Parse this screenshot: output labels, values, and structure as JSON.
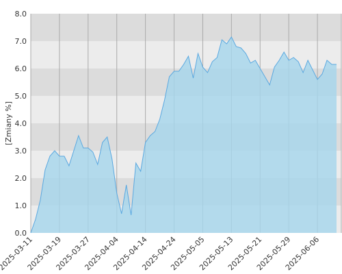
{
  "chart_data": {
    "type": "area",
    "y_label": "[Zmiany %]",
    "x": [
      0,
      1,
      2,
      3,
      4,
      5,
      6,
      7,
      8,
      9,
      10,
      11,
      12,
      13,
      14,
      15,
      16,
      17,
      18,
      19,
      20,
      21,
      22,
      23,
      24,
      25,
      26,
      27,
      28,
      29,
      30,
      31,
      32,
      33,
      34,
      35,
      36,
      37,
      38,
      39,
      40,
      41,
      42,
      43,
      44,
      45,
      46,
      47,
      48,
      49,
      50,
      51,
      52,
      53,
      54,
      55,
      56,
      57,
      58,
      59,
      60,
      61,
      62,
      63,
      64
    ],
    "series": [
      {
        "color": "#5aa8e0",
        "values": [
          0.0,
          0.5,
          1.2,
          2.3,
          2.8,
          3.0,
          2.8,
          2.8,
          2.45,
          3.0,
          3.55,
          3.1,
          3.1,
          2.95,
          2.5,
          3.3,
          3.5,
          2.7,
          1.45,
          0.7,
          1.75,
          0.65,
          2.55,
          2.25,
          3.3,
          3.55,
          3.7,
          4.15,
          4.85,
          5.7,
          5.9,
          5.9,
          6.15,
          6.45,
          5.65,
          6.55,
          6.05,
          5.85,
          6.25,
          6.4,
          7.05,
          6.9,
          7.15,
          6.8,
          6.75,
          6.55,
          6.2,
          6.3,
          6.0,
          5.7,
          5.4,
          6.05,
          6.3,
          6.6,
          6.3,
          6.4,
          6.25,
          5.85,
          6.3,
          5.95,
          5.6,
          5.8,
          6.3,
          6.15,
          6.15
        ]
      }
    ],
    "xlim": [
      0,
      65
    ],
    "xticks": [
      {
        "value": 0,
        "label": "2025-03-11"
      },
      {
        "value": 6,
        "label": "2025-03-19"
      },
      {
        "value": 12,
        "label": "2025-03-27"
      },
      {
        "value": 18,
        "label": "2025-04-04"
      },
      {
        "value": 24,
        "label": "2025-04-14"
      },
      {
        "value": 30,
        "label": "2025-04-24"
      },
      {
        "value": 36,
        "label": "2025-05-05"
      },
      {
        "value": 42,
        "label": "2025-05-13"
      },
      {
        "value": 48,
        "label": "2025-05-21"
      },
      {
        "value": 54,
        "label": "2025-05-29"
      },
      {
        "value": 60,
        "label": "2025-06-06"
      }
    ],
    "ylim": [
      0,
      8
    ],
    "yticks": [
      {
        "value": 0,
        "label": "0.0"
      },
      {
        "value": 1,
        "label": "1.0"
      },
      {
        "value": 2,
        "label": "2.0"
      },
      {
        "value": 3,
        "label": "3.0"
      },
      {
        "value": 4,
        "label": "4.0"
      },
      {
        "value": 5,
        "label": "5.0"
      },
      {
        "value": 6,
        "label": "6.0"
      },
      {
        "value": 7,
        "label": "7.0"
      },
      {
        "value": 8,
        "label": "8.0"
      }
    ],
    "grid": true
  }
}
